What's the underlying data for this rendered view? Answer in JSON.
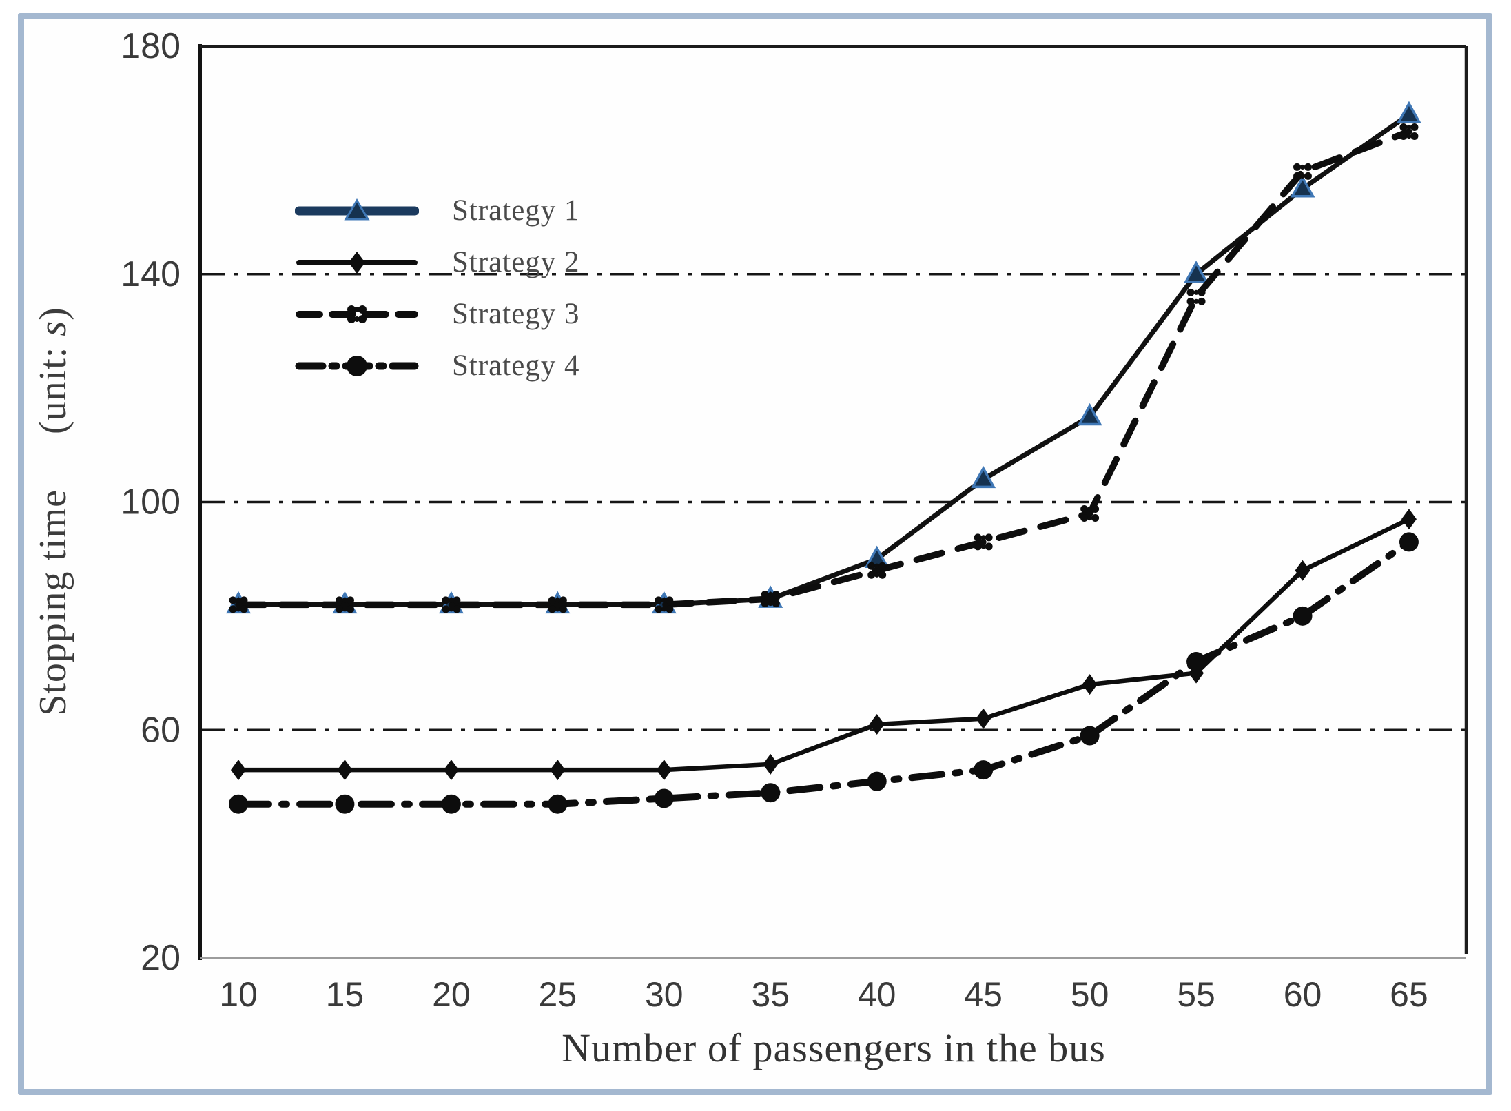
{
  "frame": {
    "border_color": "#a4b8d0",
    "background": "#ffffff"
  },
  "chart_data": {
    "type": "line",
    "title": "",
    "xlabel": "Number of passengers in the bus",
    "ylabel_main": "Stopping time",
    "ylabel_unit_prefix": "(unit: ",
    "ylabel_unit": "s",
    "ylabel_unit_suffix": ")",
    "categories": [
      10,
      15,
      20,
      25,
      30,
      35,
      40,
      45,
      50,
      55,
      60,
      65
    ],
    "y_ticks": [
      20,
      60,
      100,
      140,
      180
    ],
    "ylim": [
      20,
      180
    ],
    "gridlines": [
      60,
      100,
      140
    ],
    "grid_style": "dash-dot",
    "legend_position": "upper-left",
    "series": [
      {
        "name": "Strategy 1",
        "marker": "triangle",
        "line_style": "solid",
        "line_color": "#111111",
        "legend_line_color": "#1b3a5e",
        "marker_fill": "#16324f",
        "marker_stroke": "#3f77b5",
        "values": [
          82,
          82,
          82,
          82,
          82,
          83,
          90,
          104,
          115,
          140,
          155,
          168
        ]
      },
      {
        "name": "Strategy 2",
        "marker": "diamond",
        "line_style": "solid",
        "line_color": "#0d0d0d",
        "legend_line_color": "#0d0d0d",
        "marker_fill": "#0d0d0d",
        "marker_stroke": "#0d0d0d",
        "values": [
          53,
          53,
          53,
          53,
          53,
          54,
          61,
          62,
          68,
          70,
          88,
          97
        ]
      },
      {
        "name": "Strategy 3",
        "marker": "cluster",
        "line_style": "dashed",
        "line_color": "#0d0d0d",
        "legend_line_color": "#0d0d0d",
        "marker_fill": "#0d0d0d",
        "marker_stroke": "#0d0d0d",
        "values": [
          82,
          82,
          82,
          82,
          82,
          83,
          88,
          93,
          98,
          136,
          158,
          165
        ]
      },
      {
        "name": "Strategy 4",
        "marker": "circle",
        "line_style": "dashdot",
        "line_color": "#0d0d0d",
        "legend_line_color": "#0d0d0d",
        "marker_fill": "#0d0d0d",
        "marker_stroke": "#0d0d0d",
        "values": [
          47,
          47,
          47,
          47,
          48,
          49,
          51,
          53,
          59,
          72,
          80,
          93
        ]
      }
    ]
  }
}
